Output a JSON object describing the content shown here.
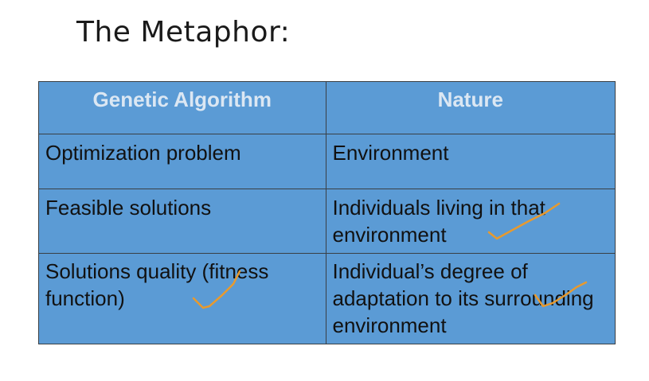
{
  "title": "The Metaphor:",
  "table": {
    "headers": [
      "Genetic Algorithm",
      "Nature"
    ],
    "rows": [
      [
        "Optimization problem",
        "Environment"
      ],
      [
        "Feasible solutions",
        "Individuals living in that environment"
      ],
      [
        "Solutions quality (fitness function)",
        "Individual’s degree of adaptation to its surrounding environment"
      ]
    ]
  },
  "annotations": {
    "checkmark_color": "#e89a2e",
    "checkmark_icon": "handwritten-checkmark"
  },
  "colors": {
    "cell_background": "#5b9bd5",
    "header_text": "#dbe7f3",
    "border": "#3a3f44"
  }
}
